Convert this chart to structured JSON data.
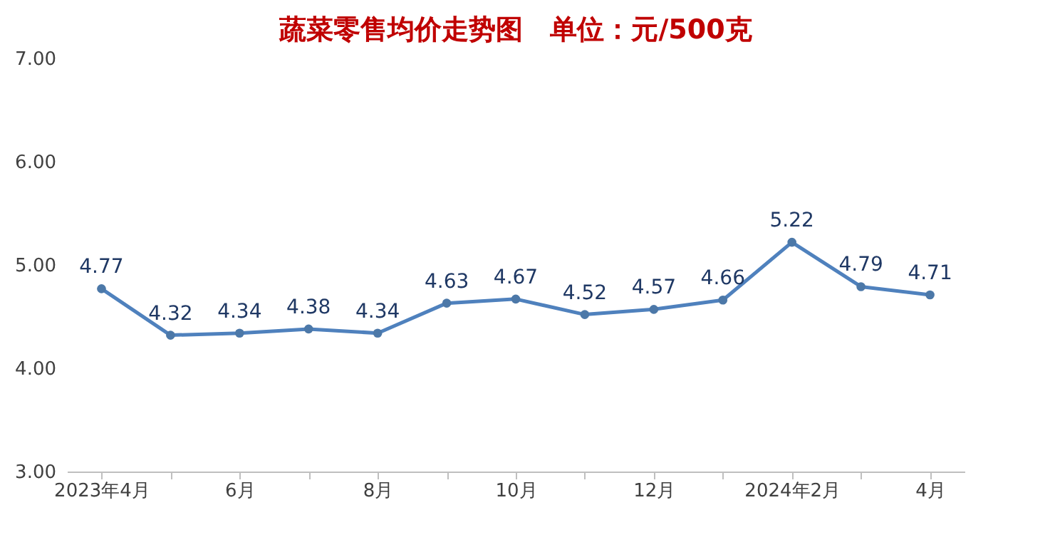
{
  "chart_data": {
    "type": "line",
    "title": "蔬菜零售均价走势图　单位：元/500克",
    "categories": [
      "2023年4月",
      null,
      "6月",
      null,
      "8月",
      null,
      "10月",
      null,
      "12月",
      null,
      "2024年2月",
      null,
      "4月"
    ],
    "series": [
      {
        "color": "#4f81bd",
        "values": [
          4.77,
          4.32,
          4.34,
          4.38,
          4.34,
          4.63,
          4.67,
          4.52,
          4.57,
          4.66,
          5.22,
          4.79,
          4.71
        ]
      }
    ],
    "ylim": [
      3,
      7
    ],
    "yticks": [
      {
        "value": 3,
        "label": "3.00"
      },
      {
        "value": 4,
        "label": "4.00"
      },
      {
        "value": 5,
        "label": "5.00"
      },
      {
        "value": 6,
        "label": "6.00"
      },
      {
        "value": 7,
        "label": "7.00"
      }
    ],
    "grid": false,
    "marker": "circle",
    "line_style": "solid",
    "data_labels": true
  }
}
